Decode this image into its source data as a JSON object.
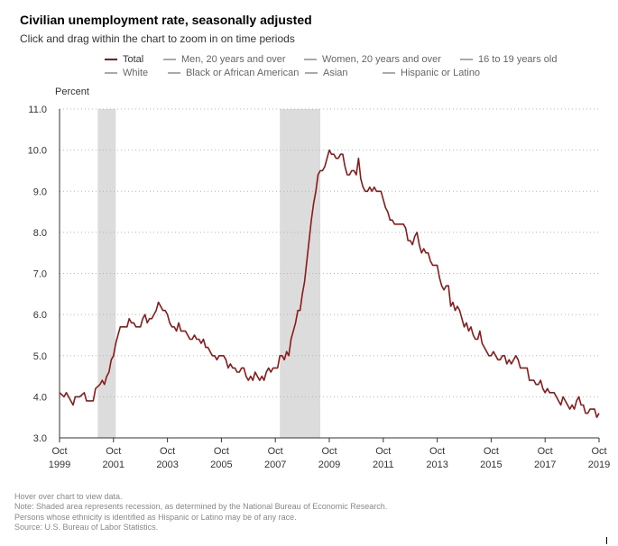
{
  "header": {
    "title": "Civilian unemployment rate, seasonally adjusted",
    "subtitle": "Click and drag within the chart to zoom in on time periods"
  },
  "legend": {
    "row1": [
      {
        "name": "legend-total",
        "label": "Total",
        "color": "#8b1a1a"
      },
      {
        "name": "legend-men",
        "label": "Men, 20 years and over",
        "color": "#aaaaaa"
      },
      {
        "name": "legend-women",
        "label": "Women, 20 years and over",
        "color": "#aaaaaa"
      },
      {
        "name": "legend-16-19",
        "label": "16 to 19 years old",
        "color": "#aaaaaa"
      }
    ],
    "row2": [
      {
        "name": "legend-white",
        "label": "White",
        "color": "#aaaaaa"
      },
      {
        "name": "legend-black",
        "label": "Black or African American",
        "color": "#aaaaaa"
      },
      {
        "name": "legend-asian",
        "label": "Asian",
        "color": "#aaaaaa"
      },
      {
        "name": "legend-hispanic",
        "label": "Hispanic or Latino",
        "color": "#aaaaaa"
      }
    ]
  },
  "chart_data": {
    "type": "line",
    "title": "Civilian unemployment rate, seasonally adjusted",
    "ylabel": "Percent",
    "ylim": [
      3.0,
      11.0
    ],
    "yticks": [
      "3.0",
      "4.0",
      "5.0",
      "6.0",
      "7.0",
      "8.0",
      "9.0",
      "10.0",
      "11.0"
    ],
    "xlim": [
      "1999-10",
      "2019-10"
    ],
    "xticks": [
      {
        "month": "Oct",
        "year": "1999"
      },
      {
        "month": "Oct",
        "year": "2001"
      },
      {
        "month": "Oct",
        "year": "2003"
      },
      {
        "month": "Oct",
        "year": "2005"
      },
      {
        "month": "Oct",
        "year": "2007"
      },
      {
        "month": "Oct",
        "year": "2009"
      },
      {
        "month": "Oct",
        "year": "2011"
      },
      {
        "month": "Oct",
        "year": "2013"
      },
      {
        "month": "Oct",
        "year": "2015"
      },
      {
        "month": "Oct",
        "year": "2017"
      },
      {
        "month": "Oct",
        "year": "2019"
      }
    ],
    "grid": "horizontal dotted",
    "legend_position": "top",
    "recessions": [
      {
        "start": "2001-03",
        "end": "2001-11"
      },
      {
        "start": "2007-12",
        "end": "2009-06"
      }
    ],
    "series": [
      {
        "name": "Total",
        "color": "#8b1a1a",
        "points": [
          [
            "1999-10",
            4.1
          ],
          [
            "1999-12",
            4.0
          ],
          [
            "2000-01",
            4.1
          ],
          [
            "2000-03",
            3.9
          ],
          [
            "2000-04",
            3.8
          ],
          [
            "2000-05",
            4.0
          ],
          [
            "2000-07",
            4.0
          ],
          [
            "2000-09",
            4.1
          ],
          [
            "2000-10",
            3.9
          ],
          [
            "2000-12",
            3.9
          ],
          [
            "2001-01",
            3.9
          ],
          [
            "2001-02",
            4.2
          ],
          [
            "2001-04",
            4.3
          ],
          [
            "2001-05",
            4.4
          ],
          [
            "2001-06",
            4.3
          ],
          [
            "2001-07",
            4.5
          ],
          [
            "2001-08",
            4.6
          ],
          [
            "2001-09",
            4.9
          ],
          [
            "2001-10",
            5.0
          ],
          [
            "2001-11",
            5.3
          ],
          [
            "2001-12",
            5.5
          ],
          [
            "2002-01",
            5.7
          ],
          [
            "2002-04",
            5.7
          ],
          [
            "2002-05",
            5.9
          ],
          [
            "2002-06",
            5.8
          ],
          [
            "2002-07",
            5.8
          ],
          [
            "2002-08",
            5.7
          ],
          [
            "2002-09",
            5.7
          ],
          [
            "2002-10",
            5.7
          ],
          [
            "2002-11",
            5.9
          ],
          [
            "2002-12",
            6.0
          ],
          [
            "2003-01",
            5.8
          ],
          [
            "2003-02",
            5.9
          ],
          [
            "2003-03",
            5.9
          ],
          [
            "2003-04",
            6.0
          ],
          [
            "2003-05",
            6.1
          ],
          [
            "2003-06",
            6.3
          ],
          [
            "2003-07",
            6.2
          ],
          [
            "2003-08",
            6.1
          ],
          [
            "2003-09",
            6.1
          ],
          [
            "2003-10",
            6.0
          ],
          [
            "2003-11",
            5.8
          ],
          [
            "2003-12",
            5.7
          ],
          [
            "2004-01",
            5.7
          ],
          [
            "2004-02",
            5.6
          ],
          [
            "2004-03",
            5.8
          ],
          [
            "2004-04",
            5.6
          ],
          [
            "2004-05",
            5.6
          ],
          [
            "2004-06",
            5.6
          ],
          [
            "2004-07",
            5.5
          ],
          [
            "2004-08",
            5.4
          ],
          [
            "2004-09",
            5.4
          ],
          [
            "2004-10",
            5.5
          ],
          [
            "2004-11",
            5.4
          ],
          [
            "2004-12",
            5.4
          ],
          [
            "2005-01",
            5.3
          ],
          [
            "2005-02",
            5.4
          ],
          [
            "2005-03",
            5.2
          ],
          [
            "2005-04",
            5.2
          ],
          [
            "2005-05",
            5.1
          ],
          [
            "2005-06",
            5.0
          ],
          [
            "2005-07",
            5.0
          ],
          [
            "2005-08",
            4.9
          ],
          [
            "2005-09",
            5.0
          ],
          [
            "2005-10",
            5.0
          ],
          [
            "2005-11",
            5.0
          ],
          [
            "2005-12",
            4.9
          ],
          [
            "2006-01",
            4.7
          ],
          [
            "2006-02",
            4.8
          ],
          [
            "2006-03",
            4.7
          ],
          [
            "2006-04",
            4.7
          ],
          [
            "2006-05",
            4.6
          ],
          [
            "2006-06",
            4.6
          ],
          [
            "2006-07",
            4.7
          ],
          [
            "2006-08",
            4.7
          ],
          [
            "2006-09",
            4.5
          ],
          [
            "2006-10",
            4.4
          ],
          [
            "2006-11",
            4.5
          ],
          [
            "2006-12",
            4.4
          ],
          [
            "2007-01",
            4.6
          ],
          [
            "2007-02",
            4.5
          ],
          [
            "2007-03",
            4.4
          ],
          [
            "2007-04",
            4.5
          ],
          [
            "2007-05",
            4.4
          ],
          [
            "2007-06",
            4.6
          ],
          [
            "2007-07",
            4.7
          ],
          [
            "2007-08",
            4.6
          ],
          [
            "2007-09",
            4.7
          ],
          [
            "2007-10",
            4.7
          ],
          [
            "2007-11",
            4.7
          ],
          [
            "2007-12",
            5.0
          ],
          [
            "2008-01",
            5.0
          ],
          [
            "2008-02",
            4.9
          ],
          [
            "2008-03",
            5.1
          ],
          [
            "2008-04",
            5.0
          ],
          [
            "2008-05",
            5.4
          ],
          [
            "2008-06",
            5.6
          ],
          [
            "2008-07",
            5.8
          ],
          [
            "2008-08",
            6.1
          ],
          [
            "2008-09",
            6.1
          ],
          [
            "2008-10",
            6.5
          ],
          [
            "2008-11",
            6.8
          ],
          [
            "2008-12",
            7.3
          ],
          [
            "2009-01",
            7.8
          ],
          [
            "2009-02",
            8.3
          ],
          [
            "2009-03",
            8.7
          ],
          [
            "2009-04",
            9.0
          ],
          [
            "2009-05",
            9.4
          ],
          [
            "2009-06",
            9.5
          ],
          [
            "2009-07",
            9.5
          ],
          [
            "2009-08",
            9.6
          ],
          [
            "2009-09",
            9.8
          ],
          [
            "2009-10",
            10.0
          ],
          [
            "2009-11",
            9.9
          ],
          [
            "2009-12",
            9.9
          ],
          [
            "2010-01",
            9.8
          ],
          [
            "2010-02",
            9.8
          ],
          [
            "2010-03",
            9.9
          ],
          [
            "2010-04",
            9.9
          ],
          [
            "2010-05",
            9.6
          ],
          [
            "2010-06",
            9.4
          ],
          [
            "2010-07",
            9.4
          ],
          [
            "2010-08",
            9.5
          ],
          [
            "2010-09",
            9.5
          ],
          [
            "2010-10",
            9.4
          ],
          [
            "2010-11",
            9.8
          ],
          [
            "2010-12",
            9.3
          ],
          [
            "2011-01",
            9.1
          ],
          [
            "2011-02",
            9.0
          ],
          [
            "2011-03",
            9.0
          ],
          [
            "2011-04",
            9.1
          ],
          [
            "2011-05",
            9.0
          ],
          [
            "2011-06",
            9.1
          ],
          [
            "2011-07",
            9.0
          ],
          [
            "2011-08",
            9.0
          ],
          [
            "2011-09",
            9.0
          ],
          [
            "2011-10",
            8.8
          ],
          [
            "2011-11",
            8.6
          ],
          [
            "2011-12",
            8.5
          ],
          [
            "2012-01",
            8.3
          ],
          [
            "2012-02",
            8.3
          ],
          [
            "2012-03",
            8.2
          ],
          [
            "2012-04",
            8.2
          ],
          [
            "2012-05",
            8.2
          ],
          [
            "2012-06",
            8.2
          ],
          [
            "2012-07",
            8.2
          ],
          [
            "2012-08",
            8.1
          ],
          [
            "2012-09",
            7.8
          ],
          [
            "2012-10",
            7.8
          ],
          [
            "2012-11",
            7.7
          ],
          [
            "2012-12",
            7.9
          ],
          [
            "2013-01",
            8.0
          ],
          [
            "2013-02",
            7.7
          ],
          [
            "2013-03",
            7.5
          ],
          [
            "2013-04",
            7.6
          ],
          [
            "2013-05",
            7.5
          ],
          [
            "2013-06",
            7.5
          ],
          [
            "2013-07",
            7.3
          ],
          [
            "2013-08",
            7.2
          ],
          [
            "2013-09",
            7.2
          ],
          [
            "2013-10",
            7.2
          ],
          [
            "2013-11",
            6.9
          ],
          [
            "2013-12",
            6.7
          ],
          [
            "2014-01",
            6.6
          ],
          [
            "2014-02",
            6.7
          ],
          [
            "2014-03",
            6.7
          ],
          [
            "2014-04",
            6.2
          ],
          [
            "2014-05",
            6.3
          ],
          [
            "2014-06",
            6.1
          ],
          [
            "2014-07",
            6.2
          ],
          [
            "2014-08",
            6.1
          ],
          [
            "2014-09",
            5.9
          ],
          [
            "2014-10",
            5.7
          ],
          [
            "2014-11",
            5.8
          ],
          [
            "2014-12",
            5.6
          ],
          [
            "2015-01",
            5.7
          ],
          [
            "2015-02",
            5.5
          ],
          [
            "2015-03",
            5.4
          ],
          [
            "2015-04",
            5.4
          ],
          [
            "2015-05",
            5.6
          ],
          [
            "2015-06",
            5.3
          ],
          [
            "2015-07",
            5.2
          ],
          [
            "2015-08",
            5.1
          ],
          [
            "2015-09",
            5.0
          ],
          [
            "2015-10",
            5.0
          ],
          [
            "2015-11",
            5.1
          ],
          [
            "2015-12",
            5.0
          ],
          [
            "2016-01",
            4.9
          ],
          [
            "2016-02",
            4.9
          ],
          [
            "2016-03",
            5.0
          ],
          [
            "2016-04",
            5.0
          ],
          [
            "2016-05",
            4.8
          ],
          [
            "2016-06",
            4.9
          ],
          [
            "2016-07",
            4.8
          ],
          [
            "2016-08",
            4.9
          ],
          [
            "2016-09",
            5.0
          ],
          [
            "2016-10",
            4.9
          ],
          [
            "2016-11",
            4.7
          ],
          [
            "2016-12",
            4.7
          ],
          [
            "2017-01",
            4.7
          ],
          [
            "2017-02",
            4.7
          ],
          [
            "2017-03",
            4.4
          ],
          [
            "2017-04",
            4.4
          ],
          [
            "2017-05",
            4.4
          ],
          [
            "2017-06",
            4.3
          ],
          [
            "2017-07",
            4.3
          ],
          [
            "2017-08",
            4.4
          ],
          [
            "2017-09",
            4.2
          ],
          [
            "2017-10",
            4.1
          ],
          [
            "2017-11",
            4.2
          ],
          [
            "2017-12",
            4.1
          ],
          [
            "2018-01",
            4.1
          ],
          [
            "2018-02",
            4.1
          ],
          [
            "2018-03",
            4.0
          ],
          [
            "2018-04",
            3.9
          ],
          [
            "2018-05",
            3.8
          ],
          [
            "2018-06",
            4.0
          ],
          [
            "2018-07",
            3.9
          ],
          [
            "2018-08",
            3.8
          ],
          [
            "2018-09",
            3.7
          ],
          [
            "2018-10",
            3.8
          ],
          [
            "2018-11",
            3.7
          ],
          [
            "2018-12",
            3.9
          ],
          [
            "2019-01",
            4.0
          ],
          [
            "2019-02",
            3.8
          ],
          [
            "2019-03",
            3.8
          ],
          [
            "2019-04",
            3.6
          ],
          [
            "2019-05",
            3.6
          ],
          [
            "2019-06",
            3.7
          ],
          [
            "2019-07",
            3.7
          ],
          [
            "2019-08",
            3.7
          ],
          [
            "2019-09",
            3.5
          ],
          [
            "2019-10",
            3.6
          ]
        ]
      }
    ]
  },
  "notes": {
    "hover": "Hover over chart to view data.",
    "recession": "Note: Shaded area represents recession, as determined by the National Bureau of Economic Research.",
    "ethnicity": "Persons whose ethnicity is identified as Hispanic or Latino may be of any race.",
    "source": "Source: U.S. Bureau of Labor Statistics."
  }
}
